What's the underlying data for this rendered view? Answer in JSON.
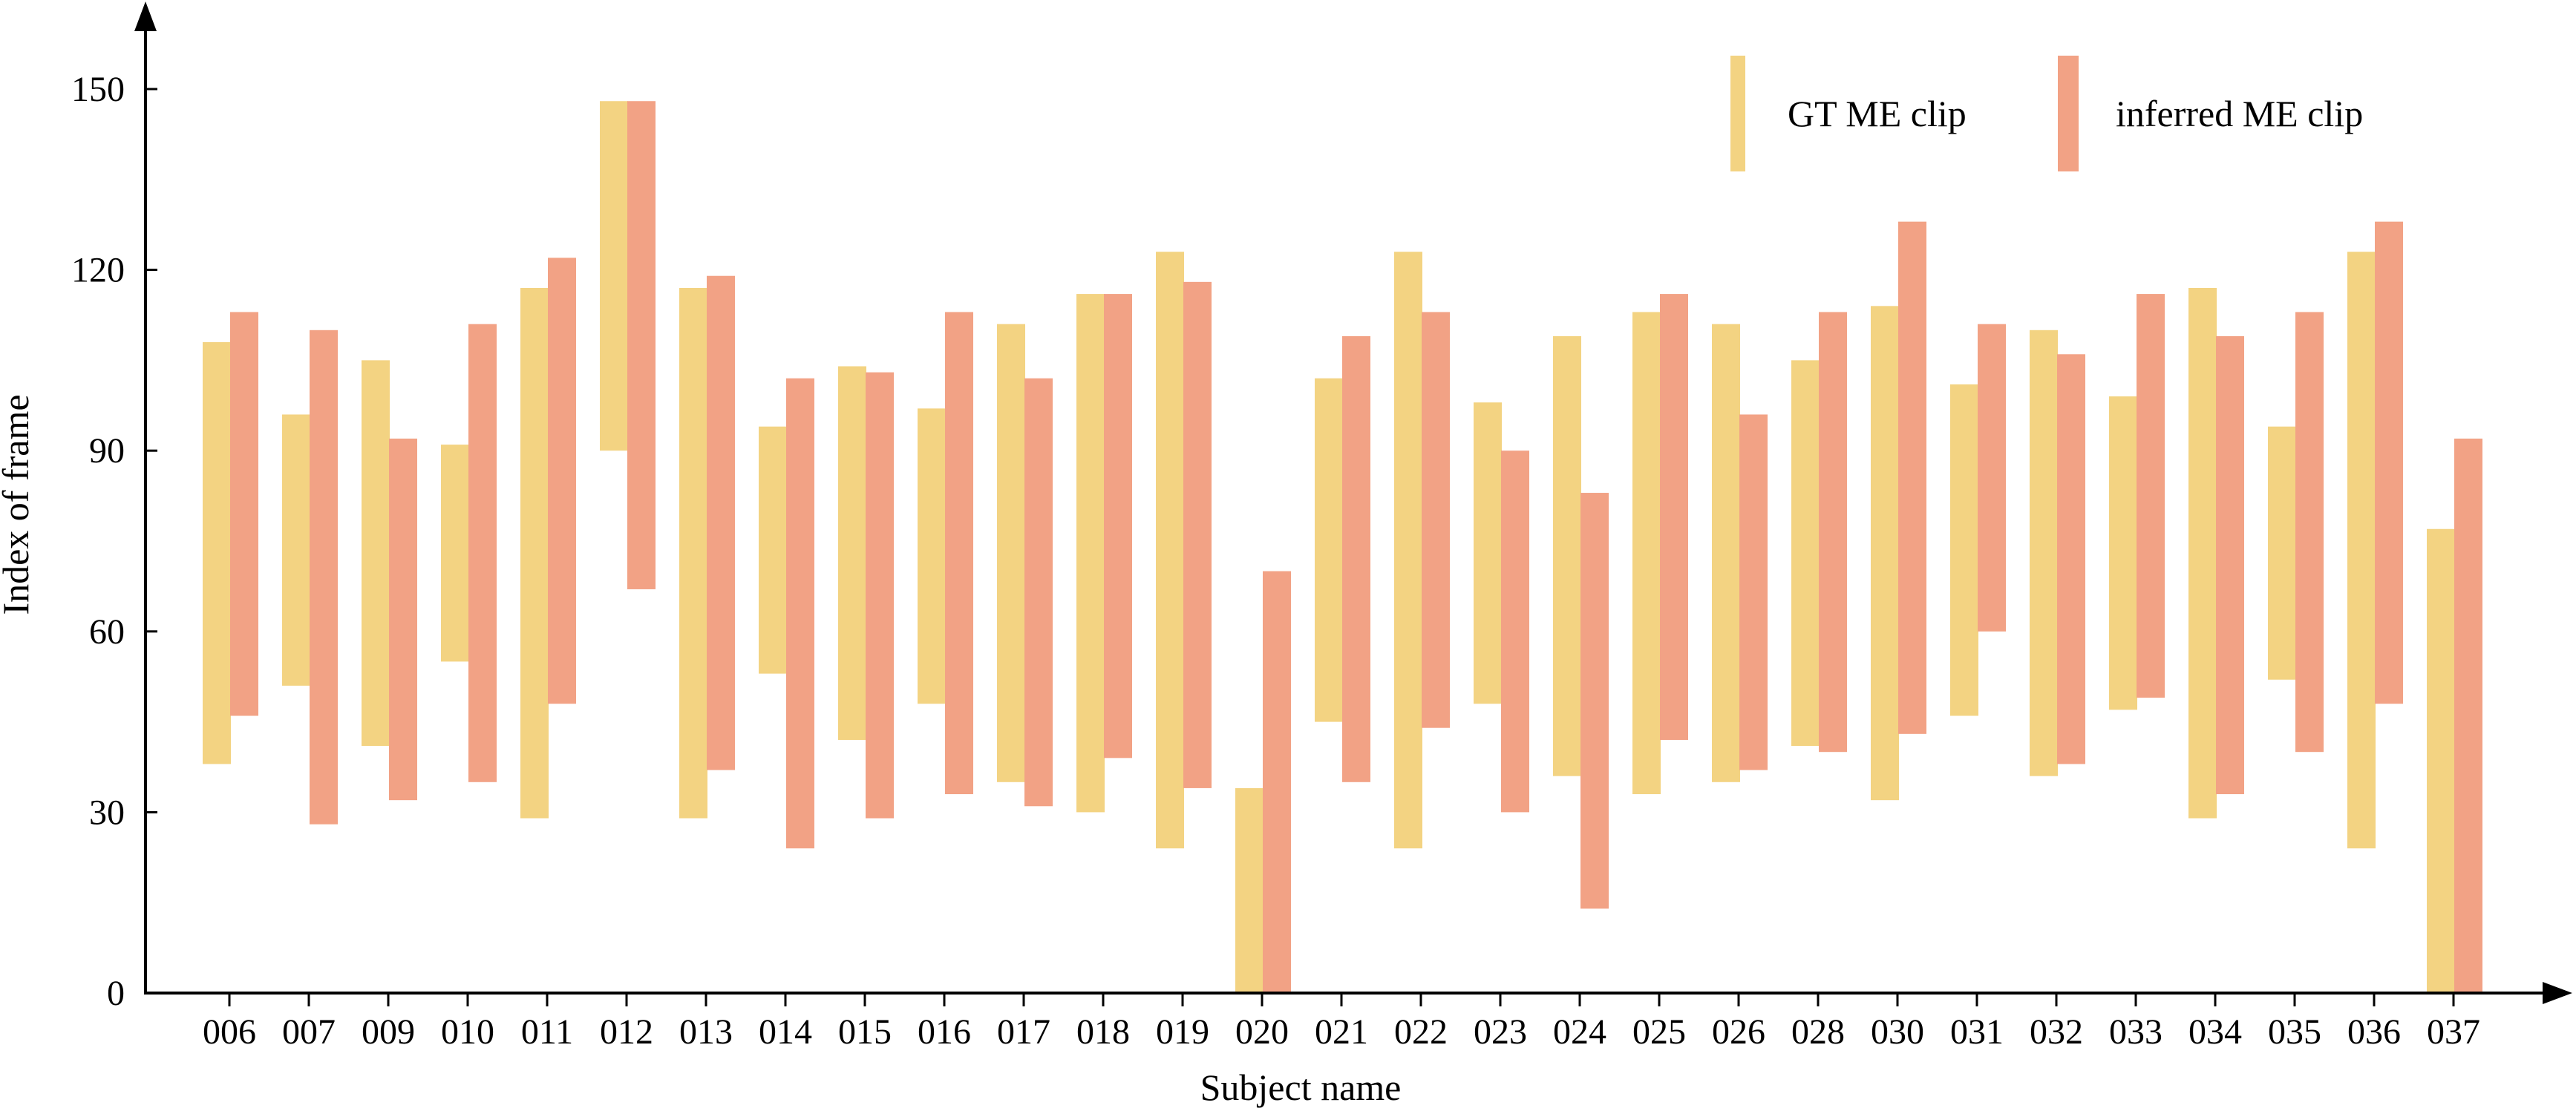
{
  "colors": {
    "gt": "#f3d382",
    "inferred": "#f2a285",
    "axis": "#000000"
  },
  "chart_data": {
    "type": "bar",
    "subtype": "floating-range",
    "xlabel": "Subject name",
    "ylabel": "Index of frame",
    "ylim": [
      0,
      155
    ],
    "yticks": [
      0,
      30,
      60,
      90,
      120,
      150
    ],
    "grid": false,
    "legend_position": "top-right",
    "categories": [
      "006",
      "007",
      "009",
      "010",
      "011",
      "012",
      "013",
      "014",
      "015",
      "016",
      "017",
      "018",
      "019",
      "020",
      "021",
      "022",
      "023",
      "024",
      "025",
      "026",
      "028",
      "030",
      "031",
      "032",
      "033",
      "034",
      "035",
      "036",
      "037"
    ],
    "series": [
      {
        "name": "GT ME clip",
        "color": "#f3d382",
        "ranges": [
          [
            38,
            108
          ],
          [
            51,
            96
          ],
          [
            41,
            105
          ],
          [
            55,
            91
          ],
          [
            29,
            117
          ],
          [
            90,
            148
          ],
          [
            29,
            117
          ],
          [
            53,
            94
          ],
          [
            42,
            104
          ],
          [
            48,
            97
          ],
          [
            35,
            111
          ],
          [
            30,
            116
          ],
          [
            24,
            123
          ],
          [
            0,
            34
          ],
          [
            45,
            102
          ],
          [
            24,
            123
          ],
          [
            48,
            98
          ],
          [
            36,
            109
          ],
          [
            33,
            113
          ],
          [
            35,
            111
          ],
          [
            41,
            105
          ],
          [
            32,
            114
          ],
          [
            46,
            101
          ],
          [
            36,
            110
          ],
          [
            47,
            99
          ],
          [
            29,
            117
          ],
          [
            52,
            94
          ],
          [
            24,
            123
          ],
          [
            0,
            77
          ]
        ]
      },
      {
        "name": "inferred ME clip",
        "color": "#f2a285",
        "ranges": [
          [
            46,
            113
          ],
          [
            28,
            110
          ],
          [
            32,
            92
          ],
          [
            35,
            111
          ],
          [
            48,
            122
          ],
          [
            67,
            148
          ],
          [
            37,
            119
          ],
          [
            24,
            102
          ],
          [
            29,
            103
          ],
          [
            33,
            113
          ],
          [
            31,
            102
          ],
          [
            39,
            116
          ],
          [
            34,
            118
          ],
          [
            0,
            70
          ],
          [
            35,
            109
          ],
          [
            44,
            113
          ],
          [
            30,
            90
          ],
          [
            14,
            83
          ],
          [
            42,
            116
          ],
          [
            37,
            96
          ],
          [
            40,
            113
          ],
          [
            43,
            128
          ],
          [
            60,
            111
          ],
          [
            38,
            106
          ],
          [
            49,
            116
          ],
          [
            33,
            109
          ],
          [
            40,
            113
          ],
          [
            48,
            128
          ],
          [
            0,
            92
          ]
        ]
      }
    ]
  }
}
